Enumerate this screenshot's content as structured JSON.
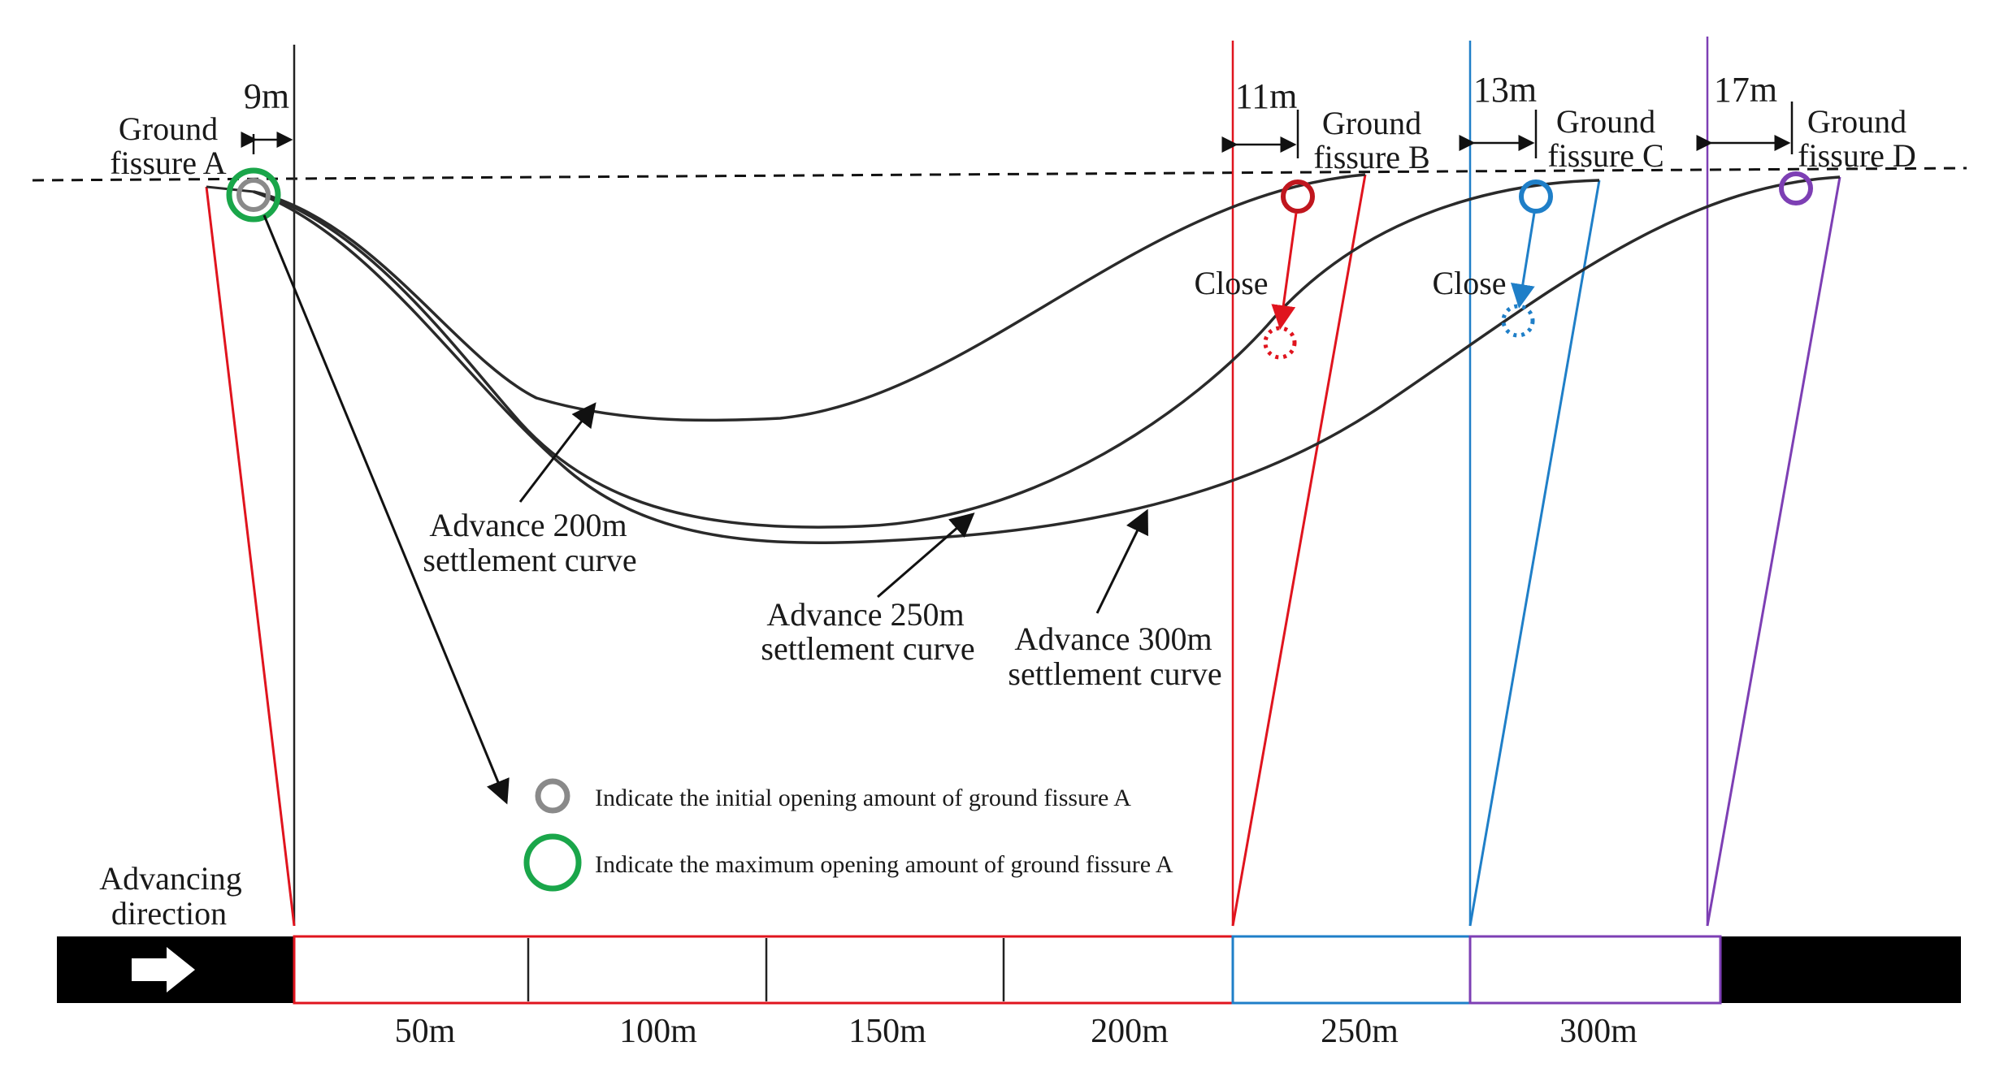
{
  "fissures": {
    "a": {
      "line1": "Ground",
      "line2": "fissure A",
      "offset": "9m"
    },
    "b": {
      "line1": "Ground",
      "line2": "fissure B",
      "offset": "11m"
    },
    "c": {
      "line1": "Ground",
      "line2": "fissure C",
      "offset": "13m"
    },
    "d": {
      "line1": "Ground",
      "line2": "fissure D",
      "offset": "17m"
    }
  },
  "close_labels": {
    "b": "Close",
    "c": "Close"
  },
  "curves": {
    "c200": {
      "line1": "Advance 200m",
      "line2": "settlement curve"
    },
    "c250": {
      "line1": "Advance 250m",
      "line2": "settlement curve"
    },
    "c300": {
      "line1": "Advance 300m",
      "line2": "settlement curve"
    }
  },
  "legend": {
    "initial": "Indicate the initial opening amount of ground fissure A",
    "maximum": "Indicate the maximum opening amount of ground fissure A"
  },
  "direction": {
    "line1": "Advancing",
    "line2": "direction"
  },
  "axis_ticks": [
    "50m",
    "100m",
    "150m",
    "200m",
    "250m",
    "300m"
  ],
  "colors": {
    "red": "#e0141e",
    "blue": "#1f7fc8",
    "purple": "#7d3fb4",
    "green": "#1aa64a",
    "gray": "#8a8a8a",
    "dark_red": "#c0161e",
    "curve": "#2a2a2a"
  }
}
